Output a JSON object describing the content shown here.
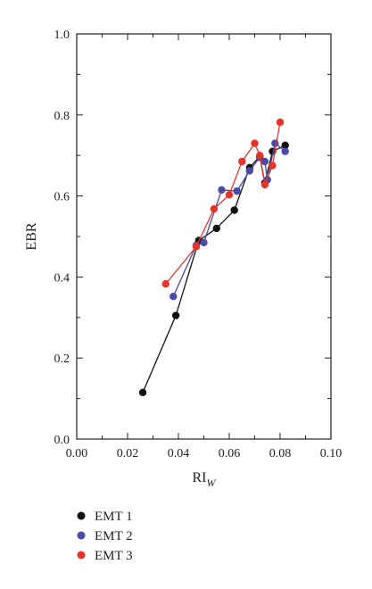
{
  "chart_data": {
    "type": "line",
    "xlabel": "RI",
    "xlabel_subscript": "W",
    "ylabel": "EBR",
    "xlim": [
      0.0,
      0.1
    ],
    "ylim": [
      0.0,
      1.0
    ],
    "xticks": [
      "0.00",
      "0.02",
      "0.04",
      "0.06",
      "0.08",
      "0.10"
    ],
    "yticks": [
      "0.0",
      "0.2",
      "0.4",
      "0.6",
      "0.8",
      "1.0"
    ],
    "grid": false,
    "legend_position": "bottom-left",
    "series": [
      {
        "name": "EMT 1",
        "color": "#111111",
        "points": [
          [
            0.026,
            0.115
          ],
          [
            0.039,
            0.305
          ],
          [
            0.048,
            0.49
          ],
          [
            0.055,
            0.52
          ],
          [
            0.062,
            0.565
          ],
          [
            0.068,
            0.67
          ],
          [
            0.072,
            0.698
          ],
          [
            0.074,
            0.632
          ],
          [
            0.077,
            0.71
          ],
          [
            0.082,
            0.725
          ]
        ]
      },
      {
        "name": "EMT 2",
        "color": "#4a4aa8",
        "points": [
          [
            0.038,
            0.352
          ],
          [
            0.047,
            0.478
          ],
          [
            0.05,
            0.485
          ],
          [
            0.057,
            0.615
          ],
          [
            0.063,
            0.612
          ],
          [
            0.068,
            0.662
          ],
          [
            0.072,
            0.695
          ],
          [
            0.074,
            0.685
          ],
          [
            0.075,
            0.64
          ],
          [
            0.078,
            0.73
          ],
          [
            0.082,
            0.71
          ]
        ]
      },
      {
        "name": "EMT 3",
        "color": "#e8332b",
        "points": [
          [
            0.035,
            0.383
          ],
          [
            0.047,
            0.475
          ],
          [
            0.054,
            0.568
          ],
          [
            0.06,
            0.603
          ],
          [
            0.065,
            0.685
          ],
          [
            0.07,
            0.73
          ],
          [
            0.072,
            0.7
          ],
          [
            0.074,
            0.628
          ],
          [
            0.077,
            0.675
          ],
          [
            0.08,
            0.782
          ]
        ]
      }
    ]
  }
}
